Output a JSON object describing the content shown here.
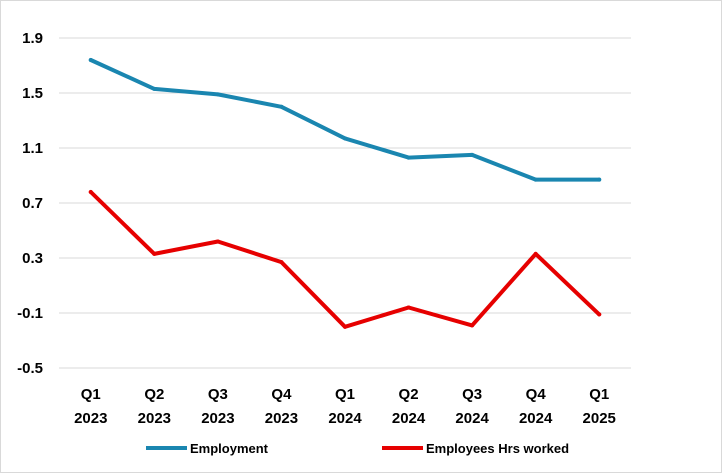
{
  "chart_data": {
    "type": "line",
    "categories": [
      [
        "Q1",
        "2023"
      ],
      [
        "Q2",
        "2023"
      ],
      [
        "Q3",
        "2023"
      ],
      [
        "Q4",
        "2023"
      ],
      [
        "Q1",
        "2024"
      ],
      [
        "Q2",
        "2024"
      ],
      [
        "Q3",
        "2024"
      ],
      [
        "Q4",
        "2024"
      ],
      [
        "Q1",
        "2025"
      ]
    ],
    "series": [
      {
        "name": "Employment",
        "color": "#1a86b0",
        "values": [
          1.74,
          1.53,
          1.49,
          1.4,
          1.17,
          1.03,
          1.05,
          0.87,
          0.87
        ]
      },
      {
        "name": "Employees Hrs worked",
        "color": "#e60000",
        "values": [
          0.78,
          0.33,
          0.42,
          0.27,
          -0.2,
          -0.06,
          -0.19,
          0.33,
          -0.11
        ]
      }
    ],
    "yticks": [
      "1.9",
      "1.5",
      "1.1",
      "0.7",
      "0.3",
      "-0.1",
      "-0.5"
    ],
    "ylim": [
      -0.5,
      1.9
    ],
    "grid": true,
    "legend_position": "bottom",
    "title": "",
    "xlabel": "",
    "ylabel": ""
  }
}
